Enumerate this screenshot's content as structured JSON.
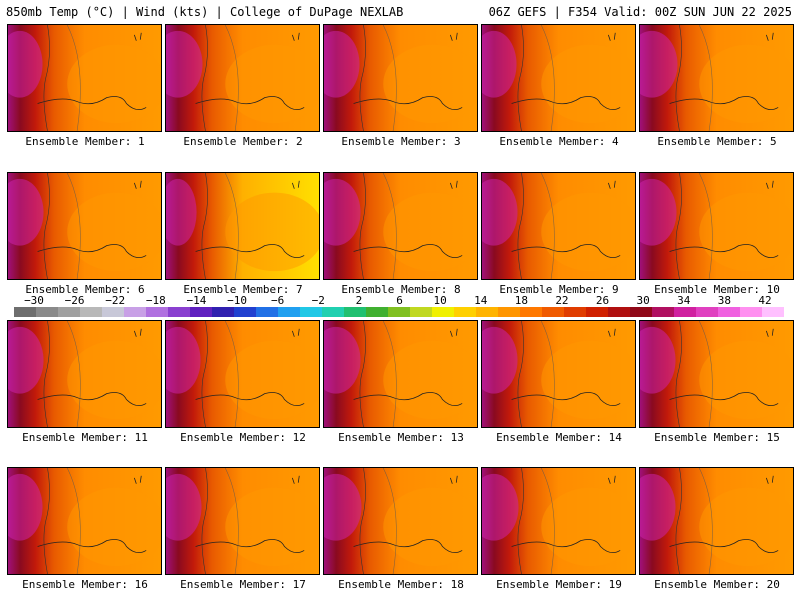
{
  "header": {
    "left_title": "850mb Temp (°C) | Wind (kts) | College of DuPage NEXLAB",
    "right_title": "06Z GEFS | F354 Valid: 00Z SUN JUN 22 2025"
  },
  "panels": [
    {
      "label": "Ensemble Member: 1",
      "warm": 0.55
    },
    {
      "label": "Ensemble Member: 2",
      "warm": 0.45
    },
    {
      "label": "Ensemble Member: 3",
      "warm": 0.5
    },
    {
      "label": "Ensemble Member: 4",
      "warm": 0.55
    },
    {
      "label": "Ensemble Member: 5",
      "warm": 0.4
    },
    {
      "label": "Ensemble Member: 6",
      "warm": 0.5
    },
    {
      "label": "Ensemble Member: 7",
      "warm": 0.75
    },
    {
      "label": "Ensemble Member: 8",
      "warm": 0.45
    },
    {
      "label": "Ensemble Member: 9",
      "warm": 0.5
    },
    {
      "label": "Ensemble Member: 10",
      "warm": 0.45
    },
    {
      "label": "Ensemble Member: 11",
      "warm": 0.5
    },
    {
      "label": "Ensemble Member: 12",
      "warm": 0.55
    },
    {
      "label": "Ensemble Member: 13",
      "warm": 0.45
    },
    {
      "label": "Ensemble Member: 14",
      "warm": 0.5
    },
    {
      "label": "Ensemble Member: 15",
      "warm": 0.5
    },
    {
      "label": "Ensemble Member: 16",
      "warm": 0.55
    },
    {
      "label": "Ensemble Member: 17",
      "warm": 0.5
    },
    {
      "label": "Ensemble Member: 18",
      "warm": 0.4
    },
    {
      "label": "Ensemble Member: 19",
      "warm": 0.45
    },
    {
      "label": "Ensemble Member: 20",
      "warm": 0.5
    }
  ],
  "colorbar": {
    "tick_labels": [
      "−30",
      "−26",
      "−22",
      "−18",
      "−14",
      "−10",
      "−6",
      "−2",
      "2",
      "6",
      "10",
      "14",
      "18",
      "22",
      "26",
      "30",
      "34",
      "38",
      "42"
    ],
    "colors": [
      "#6e6e6e",
      "#8a8a8a",
      "#a0a0a0",
      "#b8b8b8",
      "#c8c8d8",
      "#c8a0e6",
      "#b070e0",
      "#8a40d0",
      "#6020c0",
      "#3020b0",
      "#2040d0",
      "#2070e6",
      "#20a0f0",
      "#20c8e6",
      "#20d0b0",
      "#20c070",
      "#40b030",
      "#80c020",
      "#c0d820",
      "#f0f000",
      "#ffd000",
      "#ffb400",
      "#ff9600",
      "#ff7800",
      "#f05a00",
      "#e03c00",
      "#d02000",
      "#b01010",
      "#900818",
      "#b01060",
      "#d020a0",
      "#e040c0",
      "#f060e0",
      "#ff90f0",
      "#ffc0ff"
    ]
  }
}
